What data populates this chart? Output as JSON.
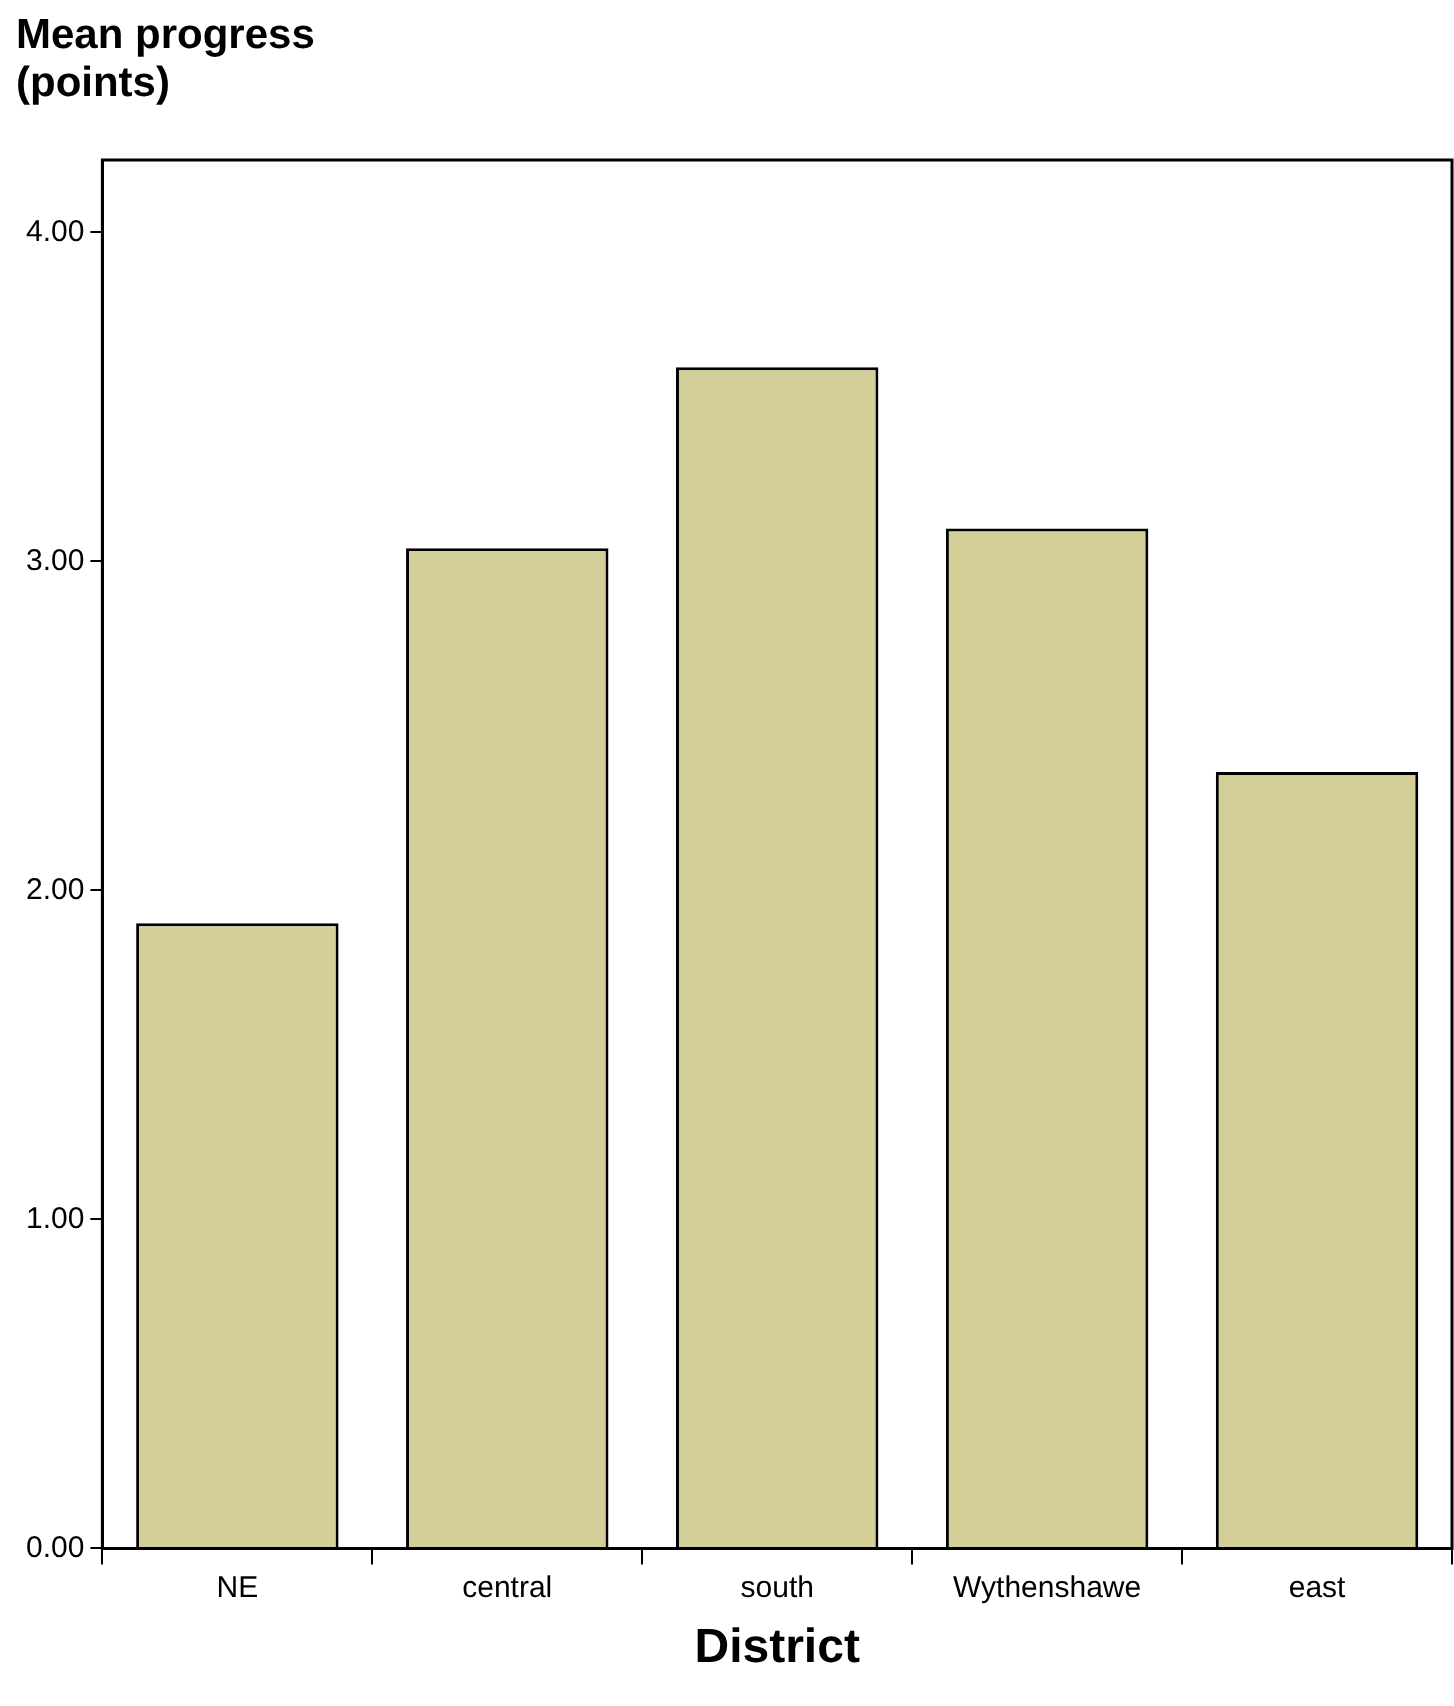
{
  "chart_data": {
    "type": "bar",
    "xlabel": "District",
    "ylabel": "Mean progress (points)",
    "categories": [
      "NE",
      "central",
      "south",
      "Wythenshawe",
      "east"
    ],
    "values": [
      1.9,
      3.04,
      3.59,
      3.1,
      2.36
    ],
    "color": "#d4cf98",
    "ylim": [
      0,
      4.22
    ],
    "yticks": [
      {
        "value": 0,
        "label": "0.00"
      },
      {
        "value": 1,
        "label": "1.00"
      },
      {
        "value": 2,
        "label": "2.00"
      },
      {
        "value": 3,
        "label": "3.00"
      },
      {
        "value": 4,
        "label": "4.00"
      }
    ],
    "grid": false,
    "legend": false
  }
}
